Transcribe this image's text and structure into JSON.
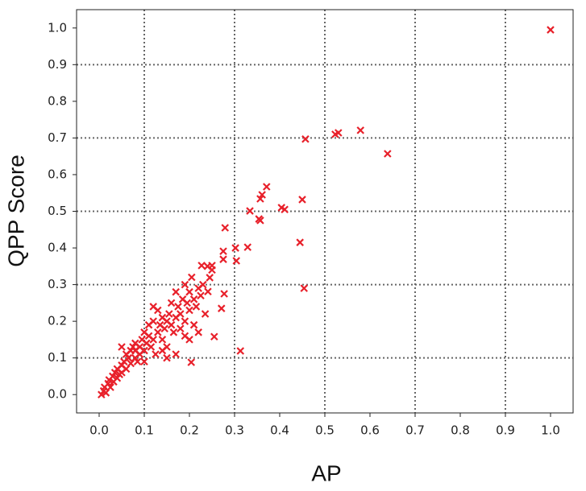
{
  "chart_data": {
    "type": "scatter",
    "marker": "x",
    "color": "#e8202a",
    "grid": "alternate",
    "x_label": "AP",
    "y_label": "QPP Score",
    "xlim": [
      -0.05,
      1.05
    ],
    "ylim": [
      -0.05,
      1.05
    ],
    "xticks": [
      {
        "value": 0,
        "label": "0.0"
      },
      0.1,
      0.2,
      0.3,
      0.4,
      0.5,
      0.6,
      0.7,
      0.8,
      0.9,
      {
        "value": 1,
        "label": "1.0"
      }
    ],
    "yticks": [
      {
        "value": 0,
        "label": "0.0"
      },
      0.1,
      0.2,
      0.3,
      0.4,
      0.5,
      0.6,
      0.7,
      0.8,
      0.9,
      {
        "value": 1,
        "label": "1.0"
      }
    ],
    "x": [
      0.005,
      0.01,
      0.012,
      0.015,
      0.02,
      0.022,
      0.025,
      0.03,
      0.032,
      0.035,
      0.04,
      0.04,
      0.045,
      0.05,
      0.05,
      0.055,
      0.06,
      0.06,
      0.065,
      0.07,
      0.07,
      0.075,
      0.08,
      0.08,
      0.085,
      0.09,
      0.09,
      0.095,
      0.1,
      0.1,
      0.1,
      0.105,
      0.11,
      0.11,
      0.115,
      0.12,
      0.12,
      0.125,
      0.13,
      0.13,
      0.135,
      0.14,
      0.14,
      0.145,
      0.15,
      0.15,
      0.155,
      0.16,
      0.16,
      0.165,
      0.17,
      0.17,
      0.175,
      0.18,
      0.18,
      0.185,
      0.19,
      0.19,
      0.195,
      0.2,
      0.2,
      0.205,
      0.21,
      0.21,
      0.215,
      0.22,
      0.225,
      0.23,
      0.235,
      0.24,
      0.25,
      0.15,
      0.17,
      0.19,
      0.22,
      0.2,
      0.05,
      0.08,
      0.12,
      0.14,
      1.0,
      0.457,
      0.523,
      0.53,
      0.579,
      0.639,
      0.45,
      0.445,
      0.454,
      0.371,
      0.361,
      0.357,
      0.354,
      0.357,
      0.404,
      0.411,
      0.334,
      0.329,
      0.302,
      0.304,
      0.279,
      0.313,
      0.275,
      0.275,
      0.277,
      0.204,
      0.255,
      0.25,
      0.245,
      0.271,
      0.241,
      0.227
    ],
    "values": [
      0.0,
      0.01,
      0.02,
      0.005,
      0.03,
      0.04,
      0.02,
      0.05,
      0.035,
      0.06,
      0.045,
      0.07,
      0.055,
      0.08,
      0.06,
      0.09,
      0.07,
      0.11,
      0.1,
      0.12,
      0.085,
      0.13,
      0.1,
      0.12,
      0.09,
      0.11,
      0.13,
      0.15,
      0.12,
      0.17,
      0.09,
      0.14,
      0.16,
      0.19,
      0.13,
      0.2,
      0.15,
      0.11,
      0.17,
      0.23,
      0.19,
      0.21,
      0.15,
      0.18,
      0.2,
      0.13,
      0.22,
      0.19,
      0.25,
      0.17,
      0.21,
      0.28,
      0.24,
      0.22,
      0.18,
      0.26,
      0.3,
      0.2,
      0.25,
      0.28,
      0.23,
      0.32,
      0.26,
      0.19,
      0.24,
      0.29,
      0.27,
      0.3,
      0.22,
      0.35,
      0.34,
      0.1,
      0.11,
      0.16,
      0.17,
      0.15,
      0.13,
      0.14,
      0.24,
      0.12,
      0.995,
      0.697,
      0.71,
      0.714,
      0.721,
      0.657,
      0.532,
      0.415,
      0.29,
      0.567,
      0.545,
      0.534,
      0.479,
      0.475,
      0.51,
      0.505,
      0.501,
      0.402,
      0.4,
      0.365,
      0.455,
      0.119,
      0.391,
      0.369,
      0.275,
      0.088,
      0.158,
      0.352,
      0.319,
      0.235,
      0.281,
      0.352
    ]
  }
}
